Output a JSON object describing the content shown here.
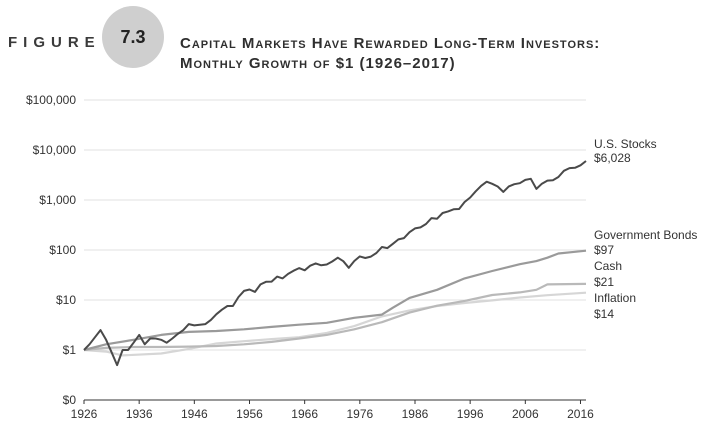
{
  "figure": {
    "label": "FIGURE",
    "number": "7.3",
    "title_line1": "Capital Markets Have Rewarded Long-Term Investors:",
    "title_line2": "Monthly Growth of $1 (1926–2017)"
  },
  "chart_data": {
    "type": "line",
    "title": "Capital Markets Have Rewarded Long-Term Investors: Monthly Growth of $1 (1926–2017)",
    "xlabel": "",
    "ylabel": "",
    "xlim": [
      1926,
      2017
    ],
    "ylim": [
      0.1,
      100000
    ],
    "y_scale": "log",
    "grid": true,
    "x_ticks": [
      1926,
      1936,
      1946,
      1956,
      1966,
      1976,
      1986,
      1996,
      2006,
      2016
    ],
    "x_tick_labels": [
      "1926",
      "1936",
      "1946",
      "1956",
      "1966",
      "1976",
      "1986",
      "1996",
      "2006",
      "2016"
    ],
    "y_ticks": [
      0.1,
      1,
      10,
      100,
      1000,
      10000,
      100000
    ],
    "y_tick_labels": [
      "$0",
      "$1",
      "$10",
      "$100",
      "$1,000",
      "$10,000",
      "$100,000"
    ],
    "colors": {
      "stocks": "#4a4a4a",
      "bonds": "#9a9a9a",
      "cash": "#b9b9b9",
      "inflation": "#d6d6d6",
      "grid": "#e2e2e2"
    },
    "series": [
      {
        "key": "stocks",
        "name": "U.S. Stocks",
        "end_label": "$6,028",
        "x": [
          1926,
          1927,
          1928,
          1929,
          1930,
          1931,
          1932,
          1933,
          1934,
          1935,
          1936,
          1937,
          1938,
          1939,
          1940,
          1941,
          1942,
          1943,
          1944,
          1945,
          1946,
          1947,
          1948,
          1949,
          1950,
          1951,
          1952,
          1953,
          1954,
          1955,
          1956,
          1957,
          1958,
          1959,
          1960,
          1961,
          1962,
          1963,
          1964,
          1965,
          1966,
          1967,
          1968,
          1969,
          1970,
          1971,
          1972,
          1973,
          1974,
          1975,
          1976,
          1977,
          1978,
          1979,
          1980,
          1981,
          1982,
          1983,
          1984,
          1985,
          1986,
          1987,
          1988,
          1989,
          1990,
          1991,
          1992,
          1993,
          1994,
          1995,
          1996,
          1997,
          1998,
          1999,
          2000,
          2001,
          2002,
          2003,
          2004,
          2005,
          2006,
          2007,
          2008,
          2009,
          2010,
          2011,
          2012,
          2013,
          2014,
          2015,
          2016,
          2017
        ],
        "values": [
          1.0,
          1.3,
          1.8,
          2.5,
          1.6,
          0.9,
          0.5,
          1.0,
          1.0,
          1.4,
          2.0,
          1.3,
          1.7,
          1.7,
          1.6,
          1.4,
          1.7,
          2.1,
          2.5,
          3.3,
          3.1,
          3.2,
          3.3,
          4.0,
          5.2,
          6.4,
          7.6,
          7.6,
          11.5,
          15.2,
          16.2,
          14.5,
          20.5,
          23.1,
          23.3,
          29.4,
          27.0,
          33.2,
          38.6,
          43.5,
          39.2,
          48.6,
          54.0,
          49.4,
          51.3,
          58.8,
          70.0,
          59.8,
          44.0,
          60.3,
          74.5,
          69.2,
          73.8,
          87.0,
          115.0,
          109.0,
          133.0,
          163.0,
          173.0,
          227.0,
          270.0,
          283.0,
          331.0,
          435.0,
          422.0,
          550.0,
          592.0,
          652.0,
          660.0,
          910.0,
          1120.0,
          1490.0,
          1920.0,
          2325.0,
          2110.0,
          1860.0,
          1450.0,
          1870.0,
          2070.0,
          2170.0,
          2520.0,
          2650.0,
          1670.0,
          2120.0,
          2440.0,
          2490.0,
          2890.0,
          3830.0,
          4350.0,
          4410.0,
          4940.0,
          6028.0
        ]
      },
      {
        "key": "bonds",
        "name": "Government Bonds",
        "end_label": "$97",
        "x": [
          1926,
          1930,
          1935,
          1940,
          1945,
          1950,
          1955,
          1960,
          1965,
          1970,
          1975,
          1980,
          1982,
          1985,
          1990,
          1995,
          2000,
          2005,
          2008,
          2010,
          2012,
          2015,
          2017
        ],
        "values": [
          1.0,
          1.3,
          1.6,
          2.0,
          2.3,
          2.4,
          2.6,
          2.9,
          3.2,
          3.5,
          4.4,
          5.1,
          7.0,
          11.0,
          16.0,
          27.0,
          38.0,
          52.0,
          60.0,
          70.0,
          85.0,
          92.0,
          97.0
        ]
      },
      {
        "key": "cash",
        "name": "Cash",
        "end_label": "$21",
        "x": [
          1926,
          1930,
          1935,
          1940,
          1945,
          1950,
          1955,
          1960,
          1965,
          1970,
          1975,
          1980,
          1985,
          1990,
          1995,
          2000,
          2005,
          2008,
          2010,
          2017
        ],
        "values": [
          1.0,
          1.1,
          1.15,
          1.15,
          1.17,
          1.2,
          1.3,
          1.45,
          1.7,
          2.0,
          2.6,
          3.6,
          5.6,
          7.7,
          9.6,
          12.6,
          14.2,
          16.0,
          20.5,
          21.0
        ]
      },
      {
        "key": "inflation",
        "name": "Inflation",
        "end_label": "$14",
        "x": [
          1926,
          1930,
          1933,
          1940,
          1945,
          1950,
          1955,
          1960,
          1965,
          1970,
          1975,
          1980,
          1985,
          1990,
          1995,
          2000,
          2005,
          2010,
          2017
        ],
        "values": [
          1.0,
          0.93,
          0.78,
          0.85,
          1.05,
          1.35,
          1.5,
          1.65,
          1.8,
          2.2,
          3.0,
          4.7,
          6.2,
          7.6,
          8.7,
          9.8,
          11.2,
          12.5,
          14.0
        ]
      }
    ]
  }
}
